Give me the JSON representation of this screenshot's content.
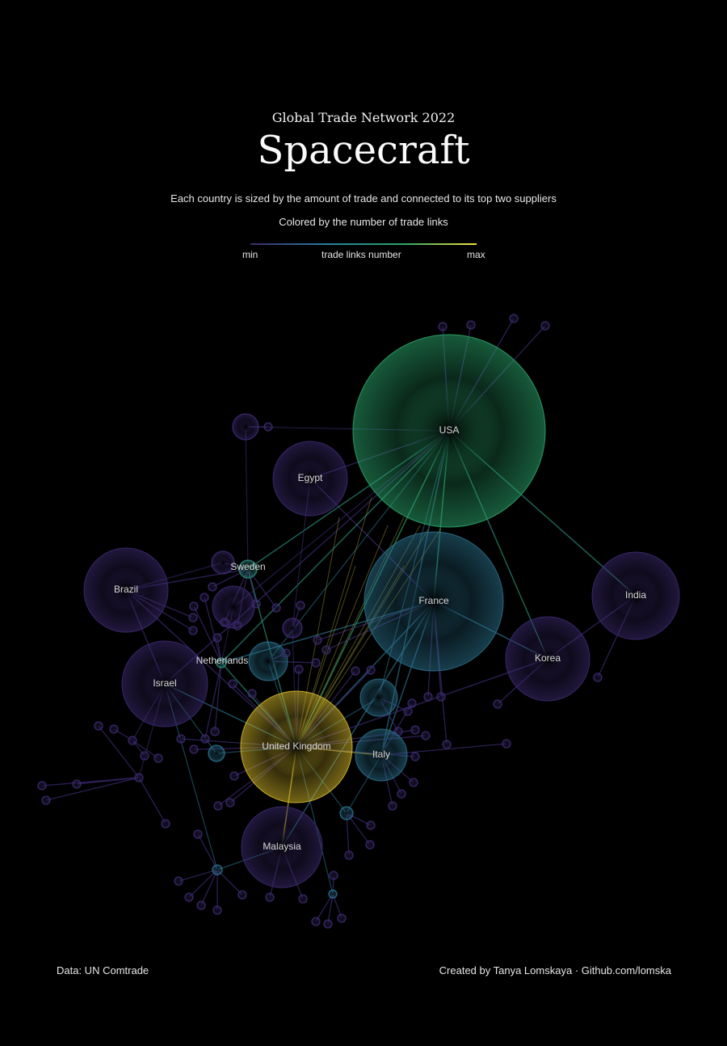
{
  "header": {
    "supertitle": "Global Trade Network 2022",
    "title": "Spacecraft",
    "subtitle1": "Each country is sized by the amount of trade and connected to its top two suppliers",
    "subtitle2": "Colored by the number of trade links"
  },
  "legend": {
    "min_label": "min",
    "center_label": "trade links number",
    "max_label": "max",
    "colors": [
      "#3b2a6e",
      "#2a7fa0",
      "#29a36a",
      "#f4e23a"
    ]
  },
  "footer": {
    "source": "Data: UN Comtrade",
    "credit": "Created by Tanya Lomskaya · Github.com/lomska"
  },
  "colors": {
    "background": "#000000",
    "level1": "#3b2a6e",
    "level2": "#2a6f8a",
    "level3": "#2a8a78",
    "level4": "#2aa36a",
    "level5": "#d4b82a"
  },
  "countries": [
    {
      "name": "USA",
      "label": "USA",
      "level": 4
    },
    {
      "name": "France",
      "label": "France",
      "level": 2
    },
    {
      "name": "United Kingdom",
      "label": "United Kingdom",
      "level": 5
    },
    {
      "name": "India",
      "label": "India",
      "level": 1
    },
    {
      "name": "Korea",
      "label": "Korea",
      "level": 1
    },
    {
      "name": "Egypt",
      "label": "Egypt",
      "level": 1
    },
    {
      "name": "Brazil",
      "label": "Brazil",
      "level": 1
    },
    {
      "name": "Israel",
      "label": "Israel",
      "level": 1
    },
    {
      "name": "Malaysia",
      "label": "Malaysia",
      "level": 1
    },
    {
      "name": "Italy",
      "label": "Italy",
      "level": 2
    },
    {
      "name": "Netherlands",
      "label": "Netherlands",
      "level": 3
    },
    {
      "name": "Sweden",
      "label": "Sweden",
      "level": 3
    }
  ]
}
